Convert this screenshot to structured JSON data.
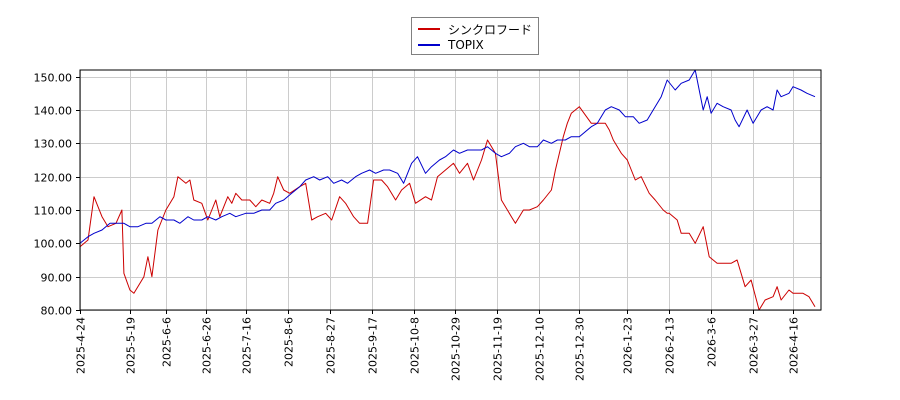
{
  "chart_data": {
    "type": "line",
    "title": "",
    "xlabel": "",
    "ylabel": "",
    "ylim": [
      80,
      152
    ],
    "yticks": [
      "80.00",
      "90.00",
      "100.00",
      "110.00",
      "120.00",
      "130.00",
      "140.00",
      "150.00"
    ],
    "x_range": [
      "2025-04-24",
      "2026-04-30"
    ],
    "xticks": [
      "2025-4-24",
      "2025-5-19",
      "2025-6-6",
      "2025-6-26",
      "2025-7-16",
      "2025-8-6",
      "2025-8-27",
      "2025-9-17",
      "2025-10-8",
      "2025-10-29",
      "2025-11-19",
      "2025-12-10",
      "2025-12-30",
      "2026-1-23",
      "2026-2-13",
      "2026-3-6",
      "2026-3-27",
      "2026-4-16"
    ],
    "grid": true,
    "legend_placement": "top-center",
    "series": [
      {
        "name": "シンクロフード",
        "color": "#cc0000",
        "points": [
          [
            "2025-04-24",
            99
          ],
          [
            "2025-04-28",
            101
          ],
          [
            "2025-05-01",
            114
          ],
          [
            "2025-05-05",
            108
          ],
          [
            "2025-05-08",
            105
          ],
          [
            "2025-05-12",
            106
          ],
          [
            "2025-05-15",
            110
          ],
          [
            "2025-05-16",
            91
          ],
          [
            "2025-05-19",
            86
          ],
          [
            "2025-05-21",
            85
          ],
          [
            "2025-05-26",
            90
          ],
          [
            "2025-05-28",
            96
          ],
          [
            "2025-05-30",
            90
          ],
          [
            "2025-06-02",
            104
          ],
          [
            "2025-06-06",
            110
          ],
          [
            "2025-06-10",
            114
          ],
          [
            "2025-06-12",
            120
          ],
          [
            "2025-06-16",
            118
          ],
          [
            "2025-06-18",
            119
          ],
          [
            "2025-06-20",
            113
          ],
          [
            "2025-06-24",
            112
          ],
          [
            "2025-06-27",
            107
          ],
          [
            "2025-07-01",
            113
          ],
          [
            "2025-07-03",
            108
          ],
          [
            "2025-07-07",
            114
          ],
          [
            "2025-07-09",
            112
          ],
          [
            "2025-07-11",
            115
          ],
          [
            "2025-07-14",
            113
          ],
          [
            "2025-07-18",
            113
          ],
          [
            "2025-07-21",
            111
          ],
          [
            "2025-07-24",
            113
          ],
          [
            "2025-07-28",
            112
          ],
          [
            "2025-07-30",
            115
          ],
          [
            "2025-08-01",
            120
          ],
          [
            "2025-08-04",
            116
          ],
          [
            "2025-08-07",
            115
          ],
          [
            "2025-08-12",
            117
          ],
          [
            "2025-08-15",
            118
          ],
          [
            "2025-08-18",
            107
          ],
          [
            "2025-08-21",
            108
          ],
          [
            "2025-08-25",
            109
          ],
          [
            "2025-08-28",
            107
          ],
          [
            "2025-09-01",
            114
          ],
          [
            "2025-09-04",
            112
          ],
          [
            "2025-09-08",
            108
          ],
          [
            "2025-09-11",
            106
          ],
          [
            "2025-09-15",
            106
          ],
          [
            "2025-09-18",
            119
          ],
          [
            "2025-09-22",
            119
          ],
          [
            "2025-09-25",
            117
          ],
          [
            "2025-09-29",
            113
          ],
          [
            "2025-10-02",
            116
          ],
          [
            "2025-10-06",
            118
          ],
          [
            "2025-10-09",
            112
          ],
          [
            "2025-10-14",
            114
          ],
          [
            "2025-10-17",
            113
          ],
          [
            "2025-10-20",
            120
          ],
          [
            "2025-10-24",
            122
          ],
          [
            "2025-10-28",
            124
          ],
          [
            "2025-10-31",
            121
          ],
          [
            "2025-11-04",
            124
          ],
          [
            "2025-11-07",
            119
          ],
          [
            "2025-11-11",
            125
          ],
          [
            "2025-11-14",
            131
          ],
          [
            "2025-11-18",
            127
          ],
          [
            "2025-11-21",
            113
          ],
          [
            "2025-11-26",
            108
          ],
          [
            "2025-11-28",
            106
          ],
          [
            "2025-12-02",
            110
          ],
          [
            "2025-12-05",
            110
          ],
          [
            "2025-12-09",
            111
          ],
          [
            "2025-12-12",
            113
          ],
          [
            "2025-12-16",
            116
          ],
          [
            "2025-12-18",
            122
          ],
          [
            "2025-12-22",
            132
          ],
          [
            "2025-12-24",
            136
          ],
          [
            "2025-12-26",
            139
          ],
          [
            "2025-12-30",
            141
          ],
          [
            "2026-01-05",
            136
          ],
          [
            "2026-01-08",
            136
          ],
          [
            "2026-01-12",
            136
          ],
          [
            "2026-01-14",
            134
          ],
          [
            "2026-01-16",
            131
          ],
          [
            "2026-01-20",
            127
          ],
          [
            "2026-01-23",
            125
          ],
          [
            "2026-01-27",
            119
          ],
          [
            "2026-01-30",
            120
          ],
          [
            "2026-02-03",
            115
          ],
          [
            "2026-02-06",
            113
          ],
          [
            "2026-02-10",
            110
          ],
          [
            "2026-02-12",
            109
          ],
          [
            "2026-02-13",
            109
          ],
          [
            "2026-02-17",
            107
          ],
          [
            "2026-02-19",
            103
          ],
          [
            "2026-02-23",
            103
          ],
          [
            "2026-02-26",
            100
          ],
          [
            "2026-03-02",
            105
          ],
          [
            "2026-03-05",
            96
          ],
          [
            "2026-03-09",
            94
          ],
          [
            "2026-03-12",
            94
          ],
          [
            "2026-03-16",
            94
          ],
          [
            "2026-03-19",
            95
          ],
          [
            "2026-03-23",
            87
          ],
          [
            "2026-03-26",
            89
          ],
          [
            "2026-03-30",
            80
          ],
          [
            "2026-04-02",
            83
          ],
          [
            "2026-04-06",
            84
          ],
          [
            "2026-04-08",
            87
          ],
          [
            "2026-04-10",
            83
          ],
          [
            "2026-04-14",
            86
          ],
          [
            "2026-04-16",
            85
          ],
          [
            "2026-04-21",
            85
          ],
          [
            "2026-04-24",
            84
          ],
          [
            "2026-04-27",
            81
          ]
        ]
      },
      {
        "name": "TOPIX",
        "color": "#0000cc",
        "points": [
          [
            "2025-04-24",
            100
          ],
          [
            "2025-04-28",
            102
          ],
          [
            "2025-05-01",
            103
          ],
          [
            "2025-05-05",
            104
          ],
          [
            "2025-05-09",
            106
          ],
          [
            "2025-05-13",
            106
          ],
          [
            "2025-05-16",
            106
          ],
          [
            "2025-05-19",
            105
          ],
          [
            "2025-05-23",
            105
          ],
          [
            "2025-05-27",
            106
          ],
          [
            "2025-05-30",
            106
          ],
          [
            "2025-06-03",
            108
          ],
          [
            "2025-06-06",
            107
          ],
          [
            "2025-06-10",
            107
          ],
          [
            "2025-06-13",
            106
          ],
          [
            "2025-06-17",
            108
          ],
          [
            "2025-06-20",
            107
          ],
          [
            "2025-06-24",
            107
          ],
          [
            "2025-06-27",
            108
          ],
          [
            "2025-07-01",
            107
          ],
          [
            "2025-07-04",
            108
          ],
          [
            "2025-07-08",
            109
          ],
          [
            "2025-07-11",
            108
          ],
          [
            "2025-07-16",
            109
          ],
          [
            "2025-07-20",
            109
          ],
          [
            "2025-07-24",
            110
          ],
          [
            "2025-07-28",
            110
          ],
          [
            "2025-07-31",
            112
          ],
          [
            "2025-08-04",
            113
          ],
          [
            "2025-08-08",
            115
          ],
          [
            "2025-08-12",
            117
          ],
          [
            "2025-08-15",
            119
          ],
          [
            "2025-08-19",
            120
          ],
          [
            "2025-08-22",
            119
          ],
          [
            "2025-08-26",
            120
          ],
          [
            "2025-08-29",
            118
          ],
          [
            "2025-09-02",
            119
          ],
          [
            "2025-09-05",
            118
          ],
          [
            "2025-09-09",
            120
          ],
          [
            "2025-09-12",
            121
          ],
          [
            "2025-09-16",
            122
          ],
          [
            "2025-09-19",
            121
          ],
          [
            "2025-09-23",
            122
          ],
          [
            "2025-09-26",
            122
          ],
          [
            "2025-09-30",
            121
          ],
          [
            "2025-10-03",
            118
          ],
          [
            "2025-10-07",
            124
          ],
          [
            "2025-10-10",
            126
          ],
          [
            "2025-10-14",
            121
          ],
          [
            "2025-10-17",
            123
          ],
          [
            "2025-10-21",
            125
          ],
          [
            "2025-10-24",
            126
          ],
          [
            "2025-10-28",
            128
          ],
          [
            "2025-10-31",
            127
          ],
          [
            "2025-11-04",
            128
          ],
          [
            "2025-11-07",
            128
          ],
          [
            "2025-11-11",
            128
          ],
          [
            "2025-11-14",
            129
          ],
          [
            "2025-11-18",
            127
          ],
          [
            "2025-11-21",
            126
          ],
          [
            "2025-11-25",
            127
          ],
          [
            "2025-11-28",
            129
          ],
          [
            "2025-12-02",
            130
          ],
          [
            "2025-12-05",
            129
          ],
          [
            "2025-12-09",
            129
          ],
          [
            "2025-12-12",
            131
          ],
          [
            "2025-12-16",
            130
          ],
          [
            "2025-12-19",
            131
          ],
          [
            "2025-12-23",
            131
          ],
          [
            "2025-12-26",
            132
          ],
          [
            "2025-12-30",
            132
          ],
          [
            "2026-01-05",
            135
          ],
          [
            "2026-01-08",
            136
          ],
          [
            "2026-01-12",
            140
          ],
          [
            "2026-01-15",
            141
          ],
          [
            "2026-01-19",
            140
          ],
          [
            "2026-01-22",
            138
          ],
          [
            "2026-01-26",
            138
          ],
          [
            "2026-01-29",
            136
          ],
          [
            "2026-02-02",
            137
          ],
          [
            "2026-02-05",
            140
          ],
          [
            "2026-02-09",
            144
          ],
          [
            "2026-02-12",
            149
          ],
          [
            "2026-02-16",
            146
          ],
          [
            "2026-02-19",
            148
          ],
          [
            "2026-02-23",
            149
          ],
          [
            "2026-02-26",
            152
          ],
          [
            "2026-03-02",
            140
          ],
          [
            "2026-03-04",
            144
          ],
          [
            "2026-03-06",
            139
          ],
          [
            "2026-03-09",
            142
          ],
          [
            "2026-03-12",
            141
          ],
          [
            "2026-03-16",
            140
          ],
          [
            "2026-03-18",
            137
          ],
          [
            "2026-03-20",
            135
          ],
          [
            "2026-03-24",
            140
          ],
          [
            "2026-03-27",
            136
          ],
          [
            "2026-03-31",
            140
          ],
          [
            "2026-04-03",
            141
          ],
          [
            "2026-04-06",
            140
          ],
          [
            "2026-04-08",
            146
          ],
          [
            "2026-04-10",
            144
          ],
          [
            "2026-04-14",
            145
          ],
          [
            "2026-04-16",
            147
          ],
          [
            "2026-04-20",
            146
          ],
          [
            "2026-04-23",
            145
          ],
          [
            "2026-04-27",
            144
          ]
        ]
      }
    ]
  }
}
